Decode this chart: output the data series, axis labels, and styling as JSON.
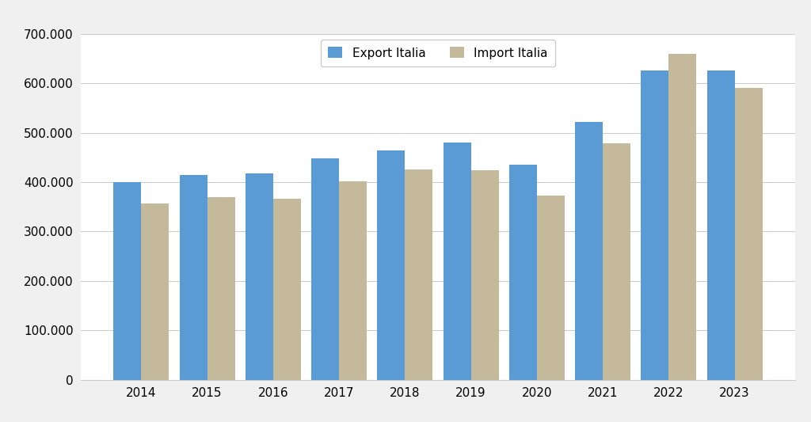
{
  "years": [
    2014,
    2015,
    2016,
    2017,
    2018,
    2019,
    2020,
    2021,
    2022,
    2023
  ],
  "export": [
    400000,
    414000,
    418000,
    448000,
    464000,
    480000,
    435000,
    521000,
    626000,
    626000
  ],
  "import": [
    357000,
    369000,
    366000,
    401000,
    425000,
    424000,
    373000,
    479000,
    660000,
    591000
  ],
  "export_color": "#5B9BD5",
  "import_color": "#C4B99A",
  "background_color": "#F0F0F0",
  "plot_bg_color": "#FFFFFF",
  "ylim": [
    0,
    700000
  ],
  "yticks": [
    0,
    100000,
    200000,
    300000,
    400000,
    500000,
    600000,
    700000
  ],
  "export_label": "Export Italia",
  "import_label": "Import Italia",
  "grid_color": "#CCCCCC",
  "bar_width": 0.42
}
